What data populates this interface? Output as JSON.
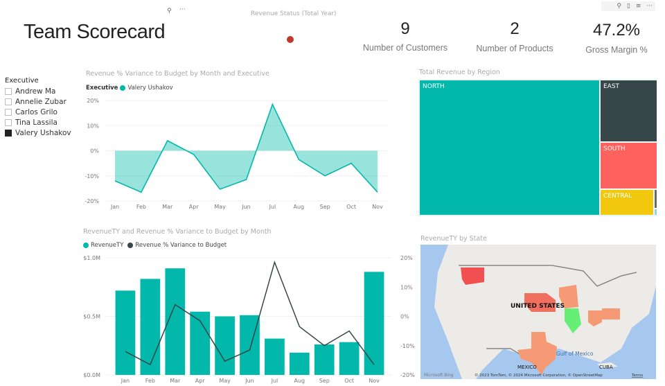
{
  "header": {
    "title": "Team Scorecard",
    "revenue_status_title": "Revenue Status (Total Year)",
    "status_color": "#c0392b"
  },
  "kpis": [
    {
      "value": "9",
      "label": "Number of Customers"
    },
    {
      "value": "2",
      "label": "Number of Products"
    },
    {
      "value": "47.2%",
      "label": "Gross Margin %"
    }
  ],
  "icons": {
    "pin": "pin-icon",
    "more": "more-icon",
    "copy": "copy-icon",
    "filter": "filter-icon"
  },
  "slicer": {
    "title": "Executive",
    "items": [
      {
        "label": "Andrew Ma",
        "checked": false
      },
      {
        "label": "Annelie Zubar",
        "checked": false
      },
      {
        "label": "Carlos Grilo",
        "checked": false
      },
      {
        "label": "Tina Lassila",
        "checked": false
      },
      {
        "label": "Valery Ushakov",
        "checked": true
      }
    ]
  },
  "chart_data": [
    {
      "type": "area",
      "title": "Revenue % Variance to Budget by Month and Executive",
      "legend_title": "Executive",
      "series": [
        {
          "name": "Valery Ushakov",
          "color": "#01b8aa",
          "values": [
            -12,
            -16.5,
            4,
            -1.5,
            -15.3,
            -11.5,
            18.5,
            -3.5,
            -10,
            -5,
            -16.5
          ]
        }
      ],
      "categories": [
        "Jan",
        "Feb",
        "Mar",
        "Apr",
        "May",
        "Jun",
        "Jul",
        "Aug",
        "Sep",
        "Oct",
        "Nov"
      ],
      "ylim": [
        -20,
        20
      ],
      "yticks": [
        "20%",
        "10%",
        "0%",
        "-10%",
        "-20%"
      ],
      "grid": true
    },
    {
      "type": "bar",
      "title": "RevenueTY and Revenue % Variance to Budget by Month",
      "categories": [
        "Jan",
        "Feb",
        "Mar",
        "Apr",
        "May",
        "Jun",
        "Jul",
        "Aug",
        "Sep",
        "Oct",
        "Nov"
      ],
      "series": [
        {
          "name": "RevenueTY",
          "type": "bar",
          "color": "#01b8aa",
          "values": [
            0.72,
            0.82,
            0.91,
            0.54,
            0.5,
            0.51,
            0.31,
            0.19,
            0.26,
            0.28,
            0.88
          ]
        },
        {
          "name": "Revenue % Variance to Budget",
          "type": "line",
          "color": "#374649",
          "values": [
            -12,
            -16.5,
            4,
            -1.5,
            -15.3,
            -11.5,
            18.5,
            -3.5,
            -10,
            -5,
            -16.5
          ]
        }
      ],
      "ylim": [
        0,
        1.0
      ],
      "yticks": [
        "$1.0M",
        "$0.5M",
        "$0.0M"
      ],
      "y2lim": [
        -20,
        20
      ],
      "y2ticks": [
        "20%",
        "10%",
        "0%",
        "-10%",
        "-20%"
      ],
      "grid": true
    }
  ],
  "treemap": {
    "title": "Total Revenue by Region",
    "regions": [
      {
        "label": "NORTH",
        "color": "#01b8aa"
      },
      {
        "label": "EAST",
        "color": "#374649"
      },
      {
        "label": "SOUTH",
        "color": "#fd625e"
      },
      {
        "label": "CENTRAL",
        "color": "#f2c80f"
      }
    ]
  },
  "map": {
    "title": "RevenueTY by State",
    "country_label": "UNITED STATES",
    "gulf_label": "Gulf of Mexico",
    "mexico_label": "MEXICO",
    "cuba_label": "CUBA",
    "logo": "Microsoft Bing",
    "attribution": "© 2023 TomTom, © 2024 Microsoft Corporation, © OpenStreetMap",
    "terms": "Terms"
  }
}
